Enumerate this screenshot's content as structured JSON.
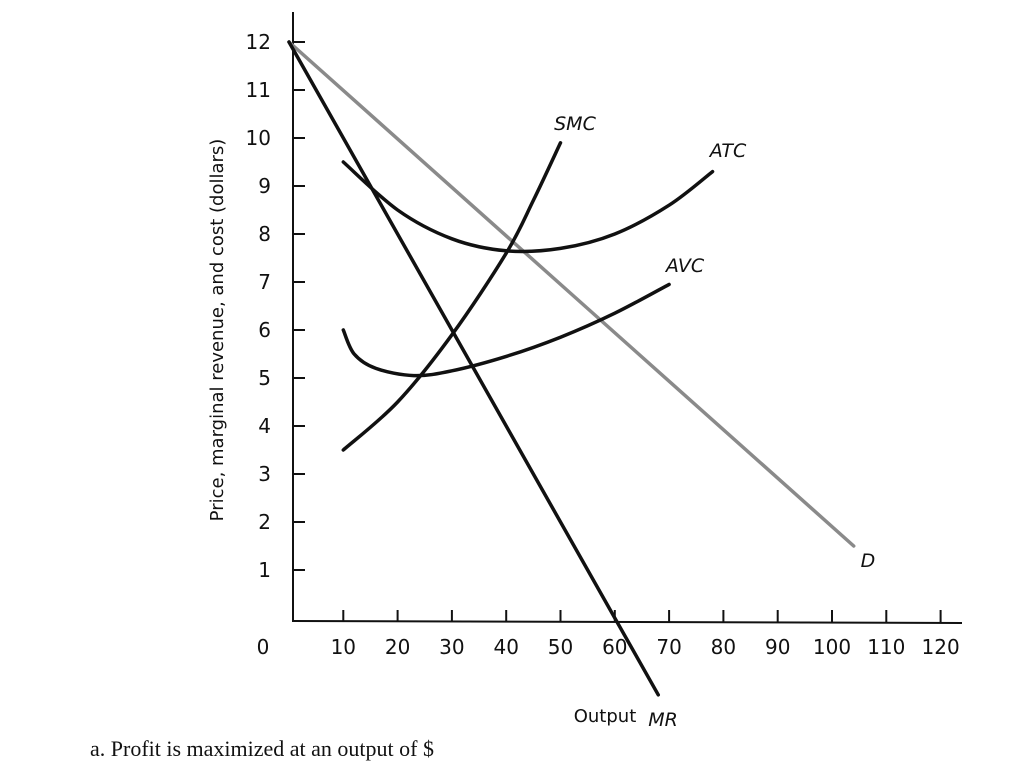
{
  "chart_data": {
    "type": "line",
    "title": "",
    "xlabel": "Output",
    "ylabel": "Price, marginal revenue, and cost (dollars)",
    "xlim": [
      0,
      120
    ],
    "ylim": [
      0,
      12
    ],
    "xticks": [
      "0",
      "10",
      "20",
      "30",
      "40",
      "50",
      "60",
      "70",
      "80",
      "90",
      "100",
      "110",
      "120"
    ],
    "yticks": [
      "1",
      "2",
      "3",
      "4",
      "5",
      "6",
      "7",
      "8",
      "9",
      "10",
      "11",
      "12"
    ],
    "grid": false,
    "series": [
      {
        "name": "D",
        "color": "#8a8a8a",
        "points": [
          [
            0,
            12
          ],
          [
            104,
            1.5
          ]
        ]
      },
      {
        "name": "MR",
        "color": "#111111",
        "points": [
          [
            0,
            12
          ],
          [
            68,
            -1.6
          ]
        ]
      },
      {
        "name": "SMC",
        "color": "#111111",
        "points": [
          [
            10,
            3.5
          ],
          [
            20,
            4.5
          ],
          [
            30,
            5.9
          ],
          [
            40,
            7.6
          ],
          [
            45,
            8.7
          ],
          [
            50,
            9.9
          ]
        ]
      },
      {
        "name": "ATC",
        "color": "#111111",
        "points": [
          [
            10,
            9.5
          ],
          [
            20,
            8.5
          ],
          [
            30,
            7.9
          ],
          [
            40,
            7.65
          ],
          [
            50,
            7.7
          ],
          [
            60,
            8.0
          ],
          [
            70,
            8.6
          ],
          [
            78,
            9.3
          ]
        ]
      },
      {
        "name": "AVC",
        "color": "#111111",
        "points": [
          [
            10,
            6.0
          ],
          [
            12,
            5.5
          ],
          [
            16,
            5.2
          ],
          [
            23,
            5.05
          ],
          [
            30,
            5.15
          ],
          [
            40,
            5.45
          ],
          [
            50,
            5.85
          ],
          [
            60,
            6.35
          ],
          [
            70,
            6.95
          ]
        ]
      }
    ]
  },
  "footer": {
    "text": "a.  Profit is maximized at an output of $"
  }
}
